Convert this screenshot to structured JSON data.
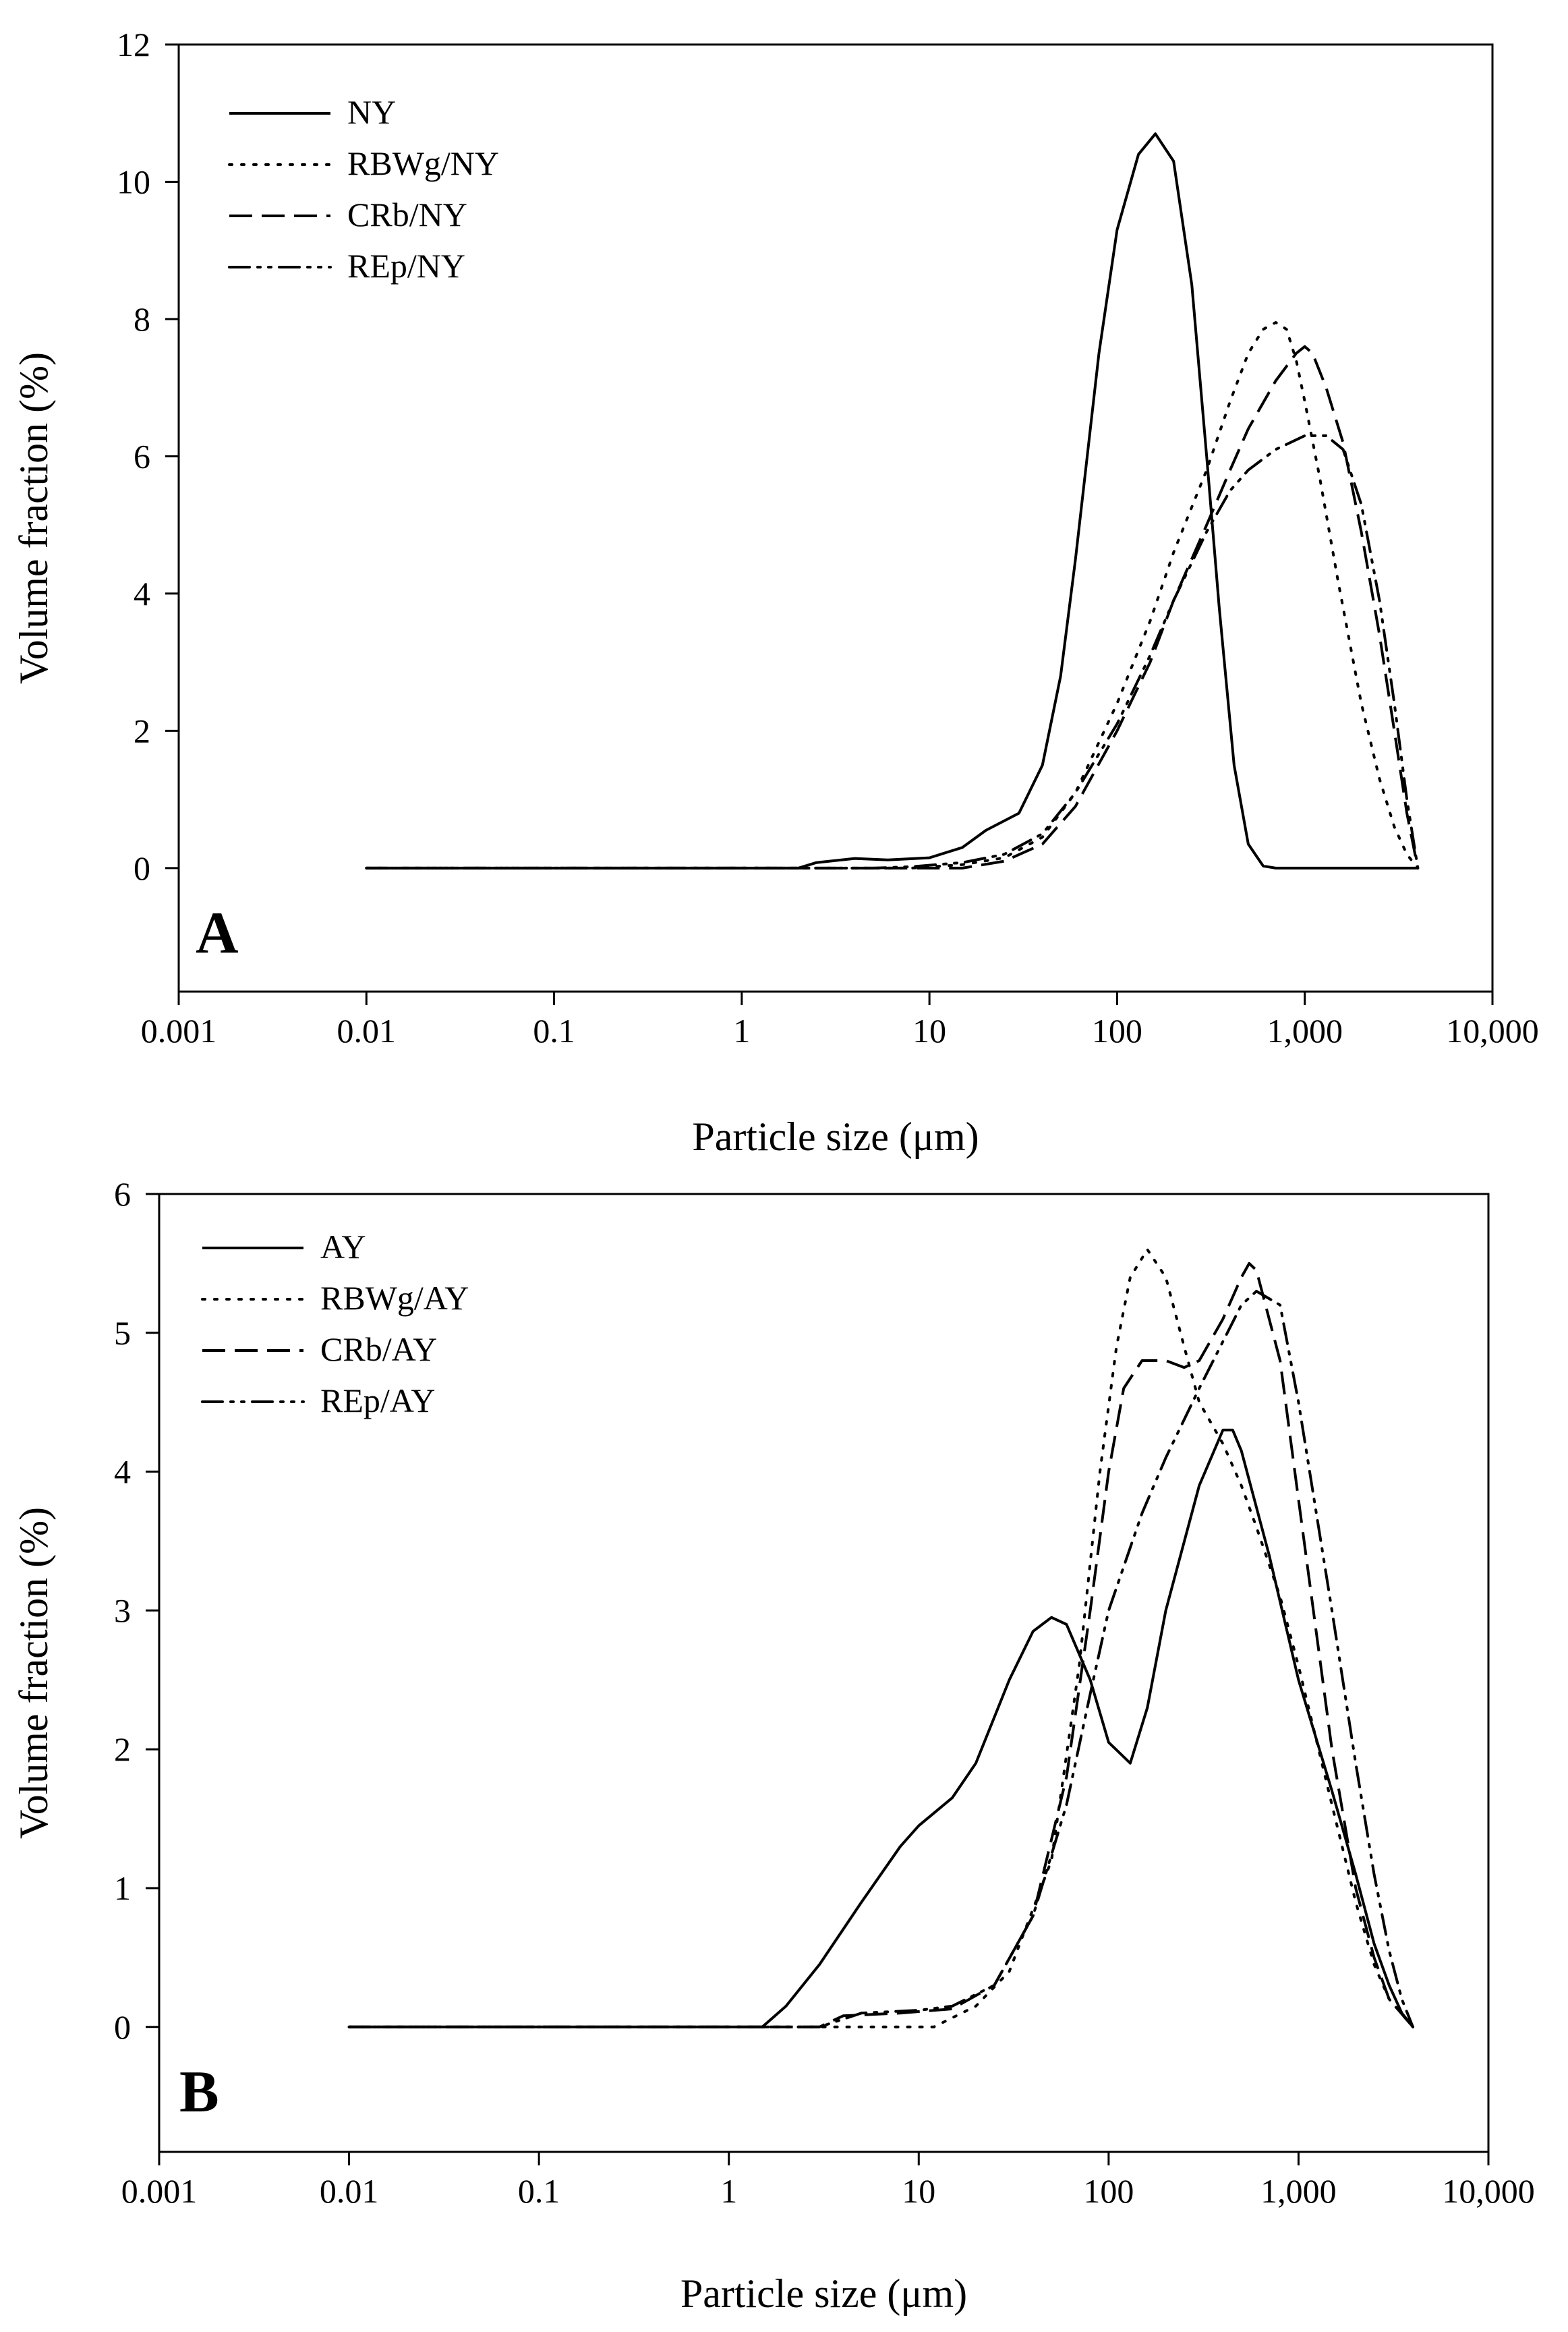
{
  "chart_data": [
    {
      "type": "line",
      "panel_label": "A",
      "xlabel": "Particle size (μm)",
      "ylabel": "Volume fraction (%)",
      "xscale": "log",
      "xlim": [
        0.001,
        10000
      ],
      "ylim": [
        -1.8,
        12
      ],
      "xticks": [
        0.001,
        0.01,
        0.1,
        1,
        10,
        100,
        1000,
        10000
      ],
      "xtick_labels": [
        "0.001",
        "0.01",
        "0.1",
        "1",
        "10",
        "100",
        "1,000",
        "10,000"
      ],
      "yticks": [
        0,
        2,
        4,
        6,
        8,
        10,
        12
      ],
      "ytick_labels": [
        "0",
        "2",
        "4",
        "6",
        "8",
        "10",
        "12"
      ],
      "grid": false,
      "legend_position": "top-left",
      "series": [
        {
          "name": "NY",
          "style": "solid",
          "points": [
            [
              0.01,
              0
            ],
            [
              2,
              0
            ],
            [
              2.5,
              0.08
            ],
            [
              4,
              0.14
            ],
            [
              6,
              0.12
            ],
            [
              10,
              0.15
            ],
            [
              15,
              0.3
            ],
            [
              20,
              0.55
            ],
            [
              30,
              0.8
            ],
            [
              40,
              1.5
            ],
            [
              50,
              2.8
            ],
            [
              60,
              4.5
            ],
            [
              80,
              7.5
            ],
            [
              100,
              9.3
            ],
            [
              130,
              10.4
            ],
            [
              160,
              10.7
            ],
            [
              200,
              10.3
            ],
            [
              250,
              8.5
            ],
            [
              300,
              6.0
            ],
            [
              350,
              3.8
            ],
            [
              420,
              1.5
            ],
            [
              500,
              0.35
            ],
            [
              600,
              0.03
            ],
            [
              700,
              0
            ],
            [
              4000,
              0
            ]
          ]
        },
        {
          "name": "RBWg/NY",
          "style": "dotted",
          "points": [
            [
              0.01,
              0
            ],
            [
              8,
              0
            ],
            [
              15,
              0.05
            ],
            [
              25,
              0.15
            ],
            [
              40,
              0.45
            ],
            [
              60,
              1.1
            ],
            [
              100,
              2.4
            ],
            [
              150,
              3.6
            ],
            [
              200,
              4.6
            ],
            [
              300,
              5.8
            ],
            [
              400,
              6.8
            ],
            [
              500,
              7.5
            ],
            [
              600,
              7.85
            ],
            [
              700,
              7.95
            ],
            [
              800,
              7.85
            ],
            [
              900,
              7.4
            ],
            [
              1000,
              6.8
            ],
            [
              1200,
              5.7
            ],
            [
              1500,
              4.2
            ],
            [
              2000,
              2.4
            ],
            [
              2500,
              1.3
            ],
            [
              3000,
              0.6
            ],
            [
              3500,
              0.2
            ],
            [
              4000,
              0
            ]
          ]
        },
        {
          "name": "CRb/NY",
          "style": "dashed",
          "points": [
            [
              0.01,
              0
            ],
            [
              15,
              0
            ],
            [
              25,
              0.1
            ],
            [
              40,
              0.35
            ],
            [
              60,
              0.9
            ],
            [
              100,
              2.0
            ],
            [
              150,
              3.0
            ],
            [
              200,
              3.9
            ],
            [
              300,
              5.0
            ],
            [
              400,
              5.8
            ],
            [
              500,
              6.4
            ],
            [
              700,
              7.1
            ],
            [
              900,
              7.5
            ],
            [
              1000,
              7.6
            ],
            [
              1100,
              7.5
            ],
            [
              1300,
              7.0
            ],
            [
              1600,
              6.2
            ],
            [
              2000,
              4.9
            ],
            [
              2500,
              3.4
            ],
            [
              3000,
              2.0
            ],
            [
              3500,
              0.8
            ],
            [
              4000,
              0
            ]
          ]
        },
        {
          "name": "REp/NY",
          "style": "dashdotdot",
          "points": [
            [
              0.01,
              0
            ],
            [
              5,
              0
            ],
            [
              8,
              0.02
            ],
            [
              15,
              0.08
            ],
            [
              25,
              0.2
            ],
            [
              40,
              0.5
            ],
            [
              60,
              1.1
            ],
            [
              100,
              2.1
            ],
            [
              150,
              3.1
            ],
            [
              200,
              3.9
            ],
            [
              300,
              4.9
            ],
            [
              400,
              5.5
            ],
            [
              500,
              5.8
            ],
            [
              700,
              6.1
            ],
            [
              1000,
              6.3
            ],
            [
              1300,
              6.3
            ],
            [
              1600,
              6.1
            ],
            [
              2000,
              5.3
            ],
            [
              2500,
              3.9
            ],
            [
              3000,
              2.4
            ],
            [
              3500,
              1.0
            ],
            [
              4000,
              0
            ]
          ]
        }
      ]
    },
    {
      "type": "line",
      "panel_label": "B",
      "xlabel": "Particle size (μm)",
      "ylabel": "Volume fraction (%)",
      "xscale": "log",
      "xlim": [
        0.001,
        10000
      ],
      "ylim": [
        -0.9,
        6
      ],
      "xticks": [
        0.001,
        0.01,
        0.1,
        1,
        10,
        100,
        1000,
        10000
      ],
      "xtick_labels": [
        "0.001",
        "0.01",
        "0.1",
        "1",
        "10",
        "100",
        "1,000",
        "10,000"
      ],
      "yticks": [
        0,
        1,
        2,
        3,
        4,
        5,
        6
      ],
      "ytick_labels": [
        "0",
        "1",
        "2",
        "3",
        "4",
        "5",
        "6"
      ],
      "grid": false,
      "legend_position": "top-left",
      "series": [
        {
          "name": "AY",
          "style": "solid",
          "points": [
            [
              0.01,
              0
            ],
            [
              1.5,
              0
            ],
            [
              2,
              0.15
            ],
            [
              3,
              0.45
            ],
            [
              5,
              0.9
            ],
            [
              8,
              1.3
            ],
            [
              10,
              1.45
            ],
            [
              15,
              1.65
            ],
            [
              20,
              1.9
            ],
            [
              30,
              2.5
            ],
            [
              40,
              2.85
            ],
            [
              50,
              2.95
            ],
            [
              60,
              2.9
            ],
            [
              80,
              2.5
            ],
            [
              100,
              2.05
            ],
            [
              130,
              1.9
            ],
            [
              160,
              2.3
            ],
            [
              200,
              3.0
            ],
            [
              300,
              3.9
            ],
            [
              400,
              4.3
            ],
            [
              450,
              4.3
            ],
            [
              500,
              4.15
            ],
            [
              700,
              3.4
            ],
            [
              1000,
              2.5
            ],
            [
              1500,
              1.7
            ],
            [
              2000,
              1.1
            ],
            [
              2500,
              0.6
            ],
            [
              3000,
              0.3
            ],
            [
              3500,
              0.1
            ],
            [
              4000,
              0
            ]
          ]
        },
        {
          "name": "RBWg/AY",
          "style": "dotted",
          "points": [
            [
              0.01,
              0
            ],
            [
              12,
              0
            ],
            [
              20,
              0.15
            ],
            [
              30,
              0.4
            ],
            [
              50,
              1.2
            ],
            [
              70,
              2.6
            ],
            [
              90,
              4.0
            ],
            [
              110,
              4.9
            ],
            [
              130,
              5.4
            ],
            [
              160,
              5.6
            ],
            [
              200,
              5.4
            ],
            [
              250,
              4.9
            ],
            [
              300,
              4.5
            ],
            [
              400,
              4.2
            ],
            [
              500,
              3.9
            ],
            [
              600,
              3.6
            ],
            [
              800,
              3.1
            ],
            [
              1000,
              2.6
            ],
            [
              1500,
              1.6
            ],
            [
              2000,
              0.9
            ],
            [
              2500,
              0.45
            ],
            [
              3000,
              0.2
            ],
            [
              4000,
              0
            ]
          ]
        },
        {
          "name": "CRb/AY",
          "style": "dashed",
          "points": [
            [
              0.01,
              0
            ],
            [
              3,
              0
            ],
            [
              4,
              0.08
            ],
            [
              8,
              0.1
            ],
            [
              15,
              0.13
            ],
            [
              25,
              0.3
            ],
            [
              40,
              0.8
            ],
            [
              60,
              1.8
            ],
            [
              80,
              3.0
            ],
            [
              100,
              4.0
            ],
            [
              120,
              4.6
            ],
            [
              150,
              4.8
            ],
            [
              200,
              4.8
            ],
            [
              250,
              4.75
            ],
            [
              300,
              4.8
            ],
            [
              400,
              5.1
            ],
            [
              500,
              5.4
            ],
            [
              550,
              5.5
            ],
            [
              600,
              5.45
            ],
            [
              800,
              4.8
            ],
            [
              1000,
              3.8
            ],
            [
              1500,
              2.0
            ],
            [
              2000,
              1.0
            ],
            [
              2500,
              0.5
            ],
            [
              3000,
              0.2
            ],
            [
              4000,
              0
            ]
          ]
        },
        {
          "name": "REp/AY",
          "style": "dashdotdot",
          "points": [
            [
              0.01,
              0
            ],
            [
              3,
              0
            ],
            [
              5,
              0.1
            ],
            [
              10,
              0.12
            ],
            [
              15,
              0.15
            ],
            [
              25,
              0.3
            ],
            [
              40,
              0.8
            ],
            [
              60,
              1.6
            ],
            [
              80,
              2.4
            ],
            [
              100,
              3.0
            ],
            [
              150,
              3.7
            ],
            [
              200,
              4.1
            ],
            [
              300,
              4.6
            ],
            [
              500,
              5.2
            ],
            [
              600,
              5.3
            ],
            [
              800,
              5.2
            ],
            [
              1000,
              4.5
            ],
            [
              1500,
              3.0
            ],
            [
              2000,
              1.9
            ],
            [
              2500,
              1.1
            ],
            [
              3000,
              0.55
            ],
            [
              3500,
              0.2
            ],
            [
              4000,
              0
            ]
          ]
        }
      ]
    }
  ]
}
